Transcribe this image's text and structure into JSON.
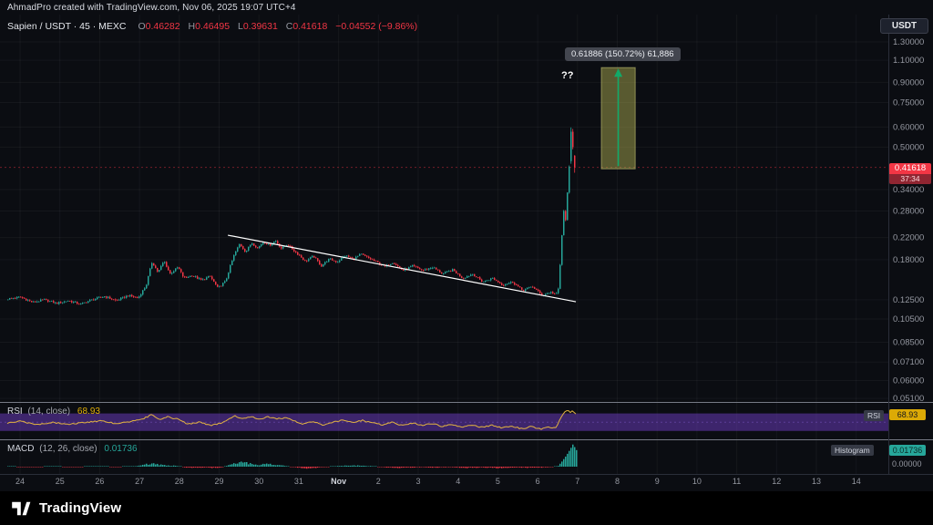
{
  "attribution": "AhmadPro created with TradingView.com, Nov 06, 2025 19:07 UTC+4",
  "legend": {
    "symbol": "Sapien / USDT · 45 · MEXC",
    "o_label": "O",
    "o_value": "0.46282",
    "h_label": "H",
    "h_value": "0.46495",
    "l_label": "L",
    "l_value": "0.39631",
    "c_label": "C",
    "c_value": "0.41618",
    "change": "−0.04552 (−9.86%)"
  },
  "currency_button": "USDT",
  "price_badge": {
    "value": "0.41618",
    "countdown": "37:34"
  },
  "projection": {
    "label": "0.61886 (150.72%) 61,886",
    "annotation": "??"
  },
  "rsi_panel": {
    "name": "RSI",
    "params": "(14, close)",
    "value": "68.93",
    "axis_name": "RSI",
    "axis_value": "68.93"
  },
  "macd_panel": {
    "name": "MACD",
    "params": "(12, 26, close)",
    "value": "0.01736",
    "axis_histogram_label": "Histogram",
    "axis_value": "0.01736",
    "zero_label": "0.00000"
  },
  "footer": {
    "brand": "TradingView"
  },
  "chart_data": {
    "type": "candlestick",
    "symbol": "Sapien / USDT",
    "interval": "45",
    "exchange": "MEXC",
    "scale": "log",
    "last_bar": {
      "open": 0.46282,
      "high": 0.46495,
      "low": 0.39631,
      "close": 0.41618,
      "change": -0.04552,
      "change_pct": -9.86
    },
    "colors": {
      "up": "#26a69a",
      "down": "#f23645"
    },
    "price_axis_labels": [
      "1.30000",
      "1.10000",
      "0.90000",
      "0.75000",
      "0.60000",
      "0.50000",
      "0.34000",
      "0.28000",
      "0.22000",
      "0.18000",
      "0.12500",
      "0.10500",
      "0.08500",
      "0.07100",
      "0.06000",
      "0.05100"
    ],
    "time_axis_labels": [
      "24",
      "25",
      "26",
      "27",
      "28",
      "29",
      "30",
      "31",
      "Nov",
      "2",
      "3",
      "4",
      "5",
      "6",
      "7",
      "8",
      "9",
      "10",
      "11",
      "12",
      "13",
      "14"
    ],
    "price_path_keyframes": [
      [
        -0.35,
        0.126
      ],
      [
        0,
        0.128
      ],
      [
        0.3,
        0.122
      ],
      [
        0.6,
        0.125
      ],
      [
        0.9,
        0.121
      ],
      [
        1.2,
        0.124
      ],
      [
        1.5,
        0.12
      ],
      [
        1.8,
        0.125
      ],
      [
        2.1,
        0.129
      ],
      [
        2.4,
        0.124
      ],
      [
        2.7,
        0.13
      ],
      [
        2.95,
        0.127
      ],
      [
        3.15,
        0.142
      ],
      [
        3.3,
        0.176
      ],
      [
        3.45,
        0.16
      ],
      [
        3.6,
        0.178
      ],
      [
        3.75,
        0.158
      ],
      [
        3.95,
        0.168
      ],
      [
        4.1,
        0.152
      ],
      [
        4.3,
        0.156
      ],
      [
        4.55,
        0.149
      ],
      [
        4.75,
        0.155
      ],
      [
        4.95,
        0.139
      ],
      [
        5.15,
        0.148
      ],
      [
        5.35,
        0.186
      ],
      [
        5.5,
        0.208
      ],
      [
        5.65,
        0.193
      ],
      [
        5.8,
        0.21
      ],
      [
        5.95,
        0.2
      ],
      [
        6.1,
        0.212
      ],
      [
        6.25,
        0.205
      ],
      [
        6.4,
        0.214
      ],
      [
        6.55,
        0.199
      ],
      [
        6.7,
        0.207
      ],
      [
        6.85,
        0.196
      ],
      [
        7.0,
        0.187
      ],
      [
        7.15,
        0.177
      ],
      [
        7.35,
        0.186
      ],
      [
        7.55,
        0.17
      ],
      [
        7.75,
        0.181
      ],
      [
        7.95,
        0.176
      ],
      [
        8.15,
        0.187
      ],
      [
        8.35,
        0.181
      ],
      [
        8.55,
        0.189
      ],
      [
        8.75,
        0.182
      ],
      [
        8.95,
        0.176
      ],
      [
        9.15,
        0.169
      ],
      [
        9.35,
        0.176
      ],
      [
        9.6,
        0.163
      ],
      [
        9.85,
        0.17
      ],
      [
        10.1,
        0.163
      ],
      [
        10.35,
        0.168
      ],
      [
        10.6,
        0.158
      ],
      [
        10.85,
        0.164
      ],
      [
        11.1,
        0.152
      ],
      [
        11.35,
        0.158
      ],
      [
        11.6,
        0.147
      ],
      [
        11.85,
        0.152
      ],
      [
        12.1,
        0.143
      ],
      [
        12.35,
        0.147
      ],
      [
        12.6,
        0.136
      ],
      [
        12.85,
        0.141
      ],
      [
        13.1,
        0.13
      ],
      [
        13.3,
        0.134
      ],
      [
        13.45,
        0.131
      ],
      [
        13.52,
        0.14
      ],
      [
        13.58,
        0.21
      ],
      [
        13.64,
        0.28
      ],
      [
        13.68,
        0.25
      ],
      [
        13.74,
        0.35
      ],
      [
        13.8,
        0.46
      ],
      [
        13.85,
        0.55
      ],
      [
        13.89,
        0.57
      ],
      [
        13.93,
        0.5
      ],
      [
        13.97,
        0.42
      ]
    ],
    "trendline": {
      "from": [
        5.22,
        0.2247
      ],
      "to": [
        13.96,
        0.1228
      ],
      "color": "#ffffff"
    },
    "projection": {
      "day_start": 14.6,
      "day_end": 15.45,
      "from_price": 0.41057,
      "to_price": 1.02943,
      "change": 0.61886,
      "change_pct": 150.72,
      "ticks": "61,886",
      "arrow_color": "#12a968",
      "box_fill": "rgba(168,168,78,0.5)",
      "box_stroke": "rgba(212,212,124,0.55)"
    },
    "rsi": {
      "value": 68.93,
      "band": [
        30,
        70
      ],
      "line_color": "#e2b341",
      "band_color": "rgba(103,58,183,0.55)",
      "keyframes": [
        [
          -0.35,
          48
        ],
        [
          0,
          52
        ],
        [
          0.4,
          44
        ],
        [
          0.8,
          50
        ],
        [
          1.2,
          45
        ],
        [
          1.6,
          49
        ],
        [
          2.0,
          53
        ],
        [
          2.4,
          47
        ],
        [
          2.8,
          52
        ],
        [
          3.1,
          58
        ],
        [
          3.3,
          67
        ],
        [
          3.5,
          55
        ],
        [
          3.7,
          62
        ],
        [
          3.95,
          57
        ],
        [
          4.2,
          46
        ],
        [
          4.5,
          50
        ],
        [
          4.8,
          42
        ],
        [
          5.1,
          50
        ],
        [
          5.4,
          64
        ],
        [
          5.6,
          58
        ],
        [
          5.8,
          63
        ],
        [
          6.0,
          57
        ],
        [
          6.2,
          62
        ],
        [
          6.45,
          58
        ],
        [
          6.7,
          60
        ],
        [
          6.9,
          52
        ],
        [
          7.1,
          46
        ],
        [
          7.35,
          52
        ],
        [
          7.6,
          44
        ],
        [
          7.85,
          50
        ],
        [
          8.1,
          55
        ],
        [
          8.35,
          50
        ],
        [
          8.6,
          54
        ],
        [
          8.85,
          48
        ],
        [
          9.1,
          44
        ],
        [
          9.35,
          50
        ],
        [
          9.6,
          42
        ],
        [
          9.85,
          48
        ],
        [
          10.1,
          43
        ],
        [
          10.35,
          47
        ],
        [
          10.6,
          40
        ],
        [
          10.85,
          45
        ],
        [
          11.1,
          39
        ],
        [
          11.35,
          44
        ],
        [
          11.6,
          38
        ],
        [
          11.85,
          43
        ],
        [
          12.1,
          37
        ],
        [
          12.35,
          41
        ],
        [
          12.6,
          35
        ],
        [
          12.85,
          40
        ],
        [
          13.1,
          34
        ],
        [
          13.3,
          39
        ],
        [
          13.45,
          36
        ],
        [
          13.55,
          55
        ],
        [
          13.65,
          70
        ],
        [
          13.75,
          78
        ],
        [
          13.82,
          73
        ],
        [
          13.87,
          77
        ],
        [
          13.92,
          72
        ],
        [
          13.97,
          68.93
        ]
      ]
    },
    "macd": {
      "histogram_value": 0.01736,
      "pos_color": "#26a69a",
      "neg_color": "#f23645",
      "keyframes": [
        [
          -0.35,
          0.0002
        ],
        [
          0.3,
          -0.0004
        ],
        [
          0.8,
          0.0003
        ],
        [
          1.3,
          -0.0003
        ],
        [
          1.9,
          0.0004
        ],
        [
          2.4,
          -0.0002
        ],
        [
          2.9,
          0.0005
        ],
        [
          3.3,
          0.0035
        ],
        [
          3.6,
          0.0015
        ],
        [
          3.9,
          0.001
        ],
        [
          4.2,
          -0.0012
        ],
        [
          4.6,
          -0.0008
        ],
        [
          5.0,
          -0.0015
        ],
        [
          5.35,
          0.003
        ],
        [
          5.6,
          0.0045
        ],
        [
          5.9,
          0.002
        ],
        [
          6.2,
          0.0028
        ],
        [
          6.6,
          0.001
        ],
        [
          6.9,
          -0.0008
        ],
        [
          7.2,
          -0.0018
        ],
        [
          7.6,
          -0.0006
        ],
        [
          8.0,
          0.0008
        ],
        [
          8.4,
          0.0014
        ],
        [
          8.8,
          0.0006
        ],
        [
          9.2,
          -0.0009
        ],
        [
          9.6,
          -0.0013
        ],
        [
          10.0,
          -0.0006
        ],
        [
          10.4,
          -0.001
        ],
        [
          10.8,
          -0.0005
        ],
        [
          11.2,
          -0.0013
        ],
        [
          11.6,
          -0.0008
        ],
        [
          12.0,
          -0.0014
        ],
        [
          12.4,
          -0.0007
        ],
        [
          12.8,
          -0.0012
        ],
        [
          13.1,
          -0.0009
        ],
        [
          13.35,
          -0.0004
        ],
        [
          13.5,
          0.0008
        ],
        [
          13.6,
          0.006
        ],
        [
          13.7,
          0.012
        ],
        [
          13.8,
          0.019
        ],
        [
          13.87,
          0.0245
        ],
        [
          13.92,
          0.021
        ],
        [
          13.97,
          0.01736
        ]
      ]
    }
  }
}
